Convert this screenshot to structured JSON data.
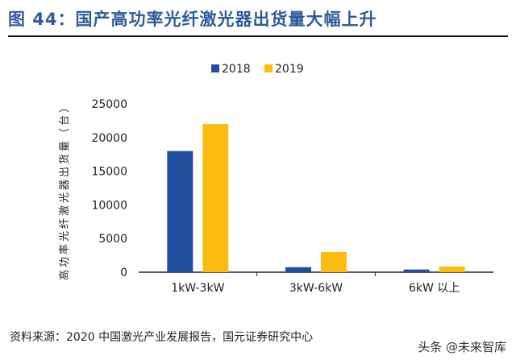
{
  "title": "图 44：国产高功率光纤激光器出货量大幅上升",
  "source": "资料来源：2020 中国激光产业发展报告，国元证券研究中心",
  "watermark": "头条 @未来智库",
  "chart_data": {
    "type": "bar",
    "title": "",
    "xlabel": "",
    "ylabel": "高功率光纤激光器出货量（台）",
    "categories": [
      "1kW-3kW",
      "3kW-6kW",
      "6kW 以上"
    ],
    "series": [
      {
        "name": "2018",
        "color": "#1f4e9e",
        "values": [
          18000,
          750,
          400
        ]
      },
      {
        "name": "2019",
        "color": "#fbbb10",
        "values": [
          22000,
          3000,
          850
        ]
      }
    ],
    "ylim": [
      0,
      25000
    ],
    "yticks": [
      0,
      5000,
      10000,
      15000,
      20000,
      25000
    ],
    "grid": false,
    "legend": "top-center"
  }
}
